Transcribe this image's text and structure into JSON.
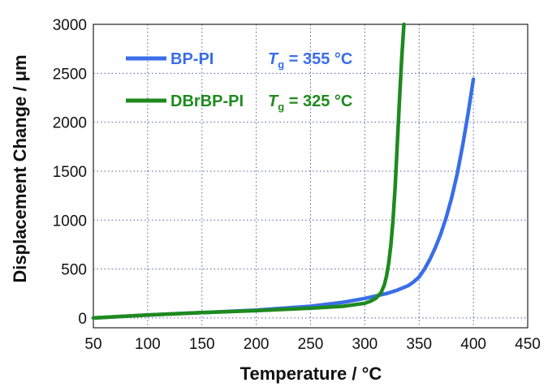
{
  "chart_data": {
    "type": "line",
    "xlabel": "Temperature / °C",
    "ylabel": "Displacement Change / μm",
    "xlim": [
      50,
      450
    ],
    "ylim": [
      -100,
      3000
    ],
    "xticks": [
      50,
      100,
      150,
      200,
      250,
      300,
      350,
      400,
      450
    ],
    "yticks": [
      0,
      500,
      1000,
      1500,
      2000,
      2500,
      3000
    ],
    "grid": true,
    "legend_position": "top-left",
    "series": [
      {
        "name": "BP-PI",
        "color": "#3a6ee8",
        "annotation": "Tg = 355 °C",
        "x": [
          50,
          100,
          150,
          200,
          250,
          280,
          300,
          310,
          320,
          330,
          340,
          345,
          350,
          355,
          360,
          365,
          370,
          375,
          380,
          385,
          390,
          395,
          400
        ],
        "y": [
          0,
          30,
          55,
          80,
          120,
          160,
          200,
          225,
          250,
          285,
          330,
          370,
          420,
          500,
          600,
          720,
          860,
          1030,
          1230,
          1470,
          1760,
          2080,
          2440
        ]
      },
      {
        "name": "DBrBP-PI",
        "color": "#1e8a1e",
        "annotation": "Tg = 325 °C",
        "x": [
          50,
          100,
          150,
          200,
          250,
          280,
          300,
          305,
          310,
          315,
          318,
          320,
          322,
          324,
          326,
          328,
          330,
          332,
          334,
          336
        ],
        "y": [
          0,
          30,
          55,
          75,
          100,
          120,
          150,
          170,
          200,
          260,
          340,
          430,
          560,
          750,
          1000,
          1350,
          1800,
          2250,
          2650,
          3000
        ]
      }
    ]
  },
  "legend": {
    "items": [
      {
        "label": "BP-PI",
        "tg_symbol": "T",
        "tg_sub": "g",
        "tg_value": " = 355 °C"
      },
      {
        "label": "DBrBP-PI",
        "tg_symbol": "T",
        "tg_sub": "g",
        "tg_value": " = 325 °C"
      }
    ]
  }
}
